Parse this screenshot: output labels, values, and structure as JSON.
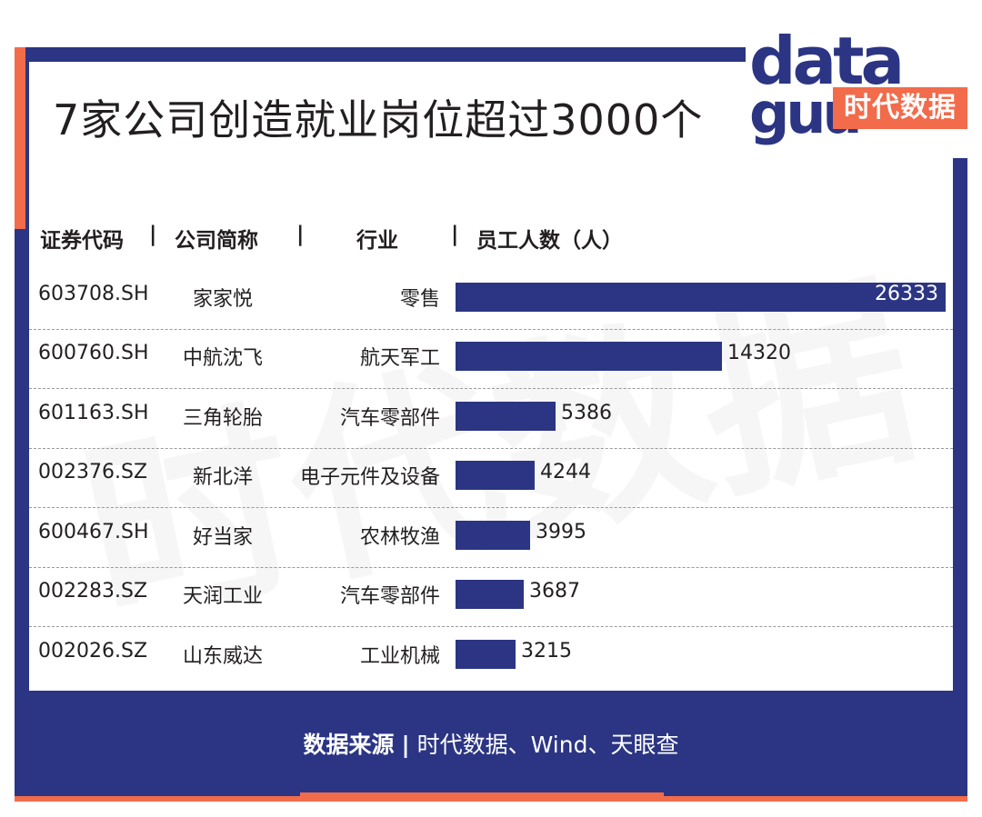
{
  "title": "7家公司创造就业岗位超过3000个",
  "logo": {
    "word_top": "data",
    "word_bottom": "guu",
    "brand_text": "时代数据"
  },
  "watermark_text": "时代数据",
  "columns": {
    "code": "证券代码",
    "name": "公司简称",
    "industry": "行业",
    "employees": "员工人数（人）",
    "separator": "|"
  },
  "rows": [
    {
      "code": "603708.SH",
      "name": "家家悦",
      "industry": "零售",
      "employees": "26333"
    },
    {
      "code": "600760.SH",
      "name": "中航沈飞",
      "industry": "航天军工",
      "employees": "14320"
    },
    {
      "code": "601163.SH",
      "name": "三角轮胎",
      "industry": "汽车零部件",
      "employees": "5386"
    },
    {
      "code": "002376.SZ",
      "name": "新北洋",
      "industry": "电子元件及设备",
      "employees": "4244"
    },
    {
      "code": "600467.SH",
      "name": "好当家",
      "industry": "农林牧渔",
      "employees": "3995"
    },
    {
      "code": "002283.SZ",
      "name": "天润工业",
      "industry": "汽车零部件",
      "employees": "3687"
    },
    {
      "code": "002026.SZ",
      "name": "山东威达",
      "industry": "工业机械",
      "employees": "3215"
    }
  ],
  "source": {
    "label": "数据来源",
    "separator": "|",
    "text": "时代数据、Wind、天眼查"
  },
  "colors": {
    "navy": "#2b3583",
    "orange": "#f26b4b",
    "text": "#231f20"
  },
  "chart_data": {
    "type": "bar",
    "orientation": "horizontal",
    "categories": [
      "家家悦",
      "中航沈飞",
      "三角轮胎",
      "新北洋",
      "好当家",
      "天润工业",
      "山东威达"
    ],
    "values": [
      26333,
      14320,
      5386,
      4244,
      3995,
      3687,
      3215
    ],
    "title": "7家公司创造就业岗位超过3000个",
    "xlabel": "员工人数（人）",
    "ylabel": "",
    "xlim": [
      0,
      26333
    ],
    "grid": false,
    "legend": "none"
  }
}
